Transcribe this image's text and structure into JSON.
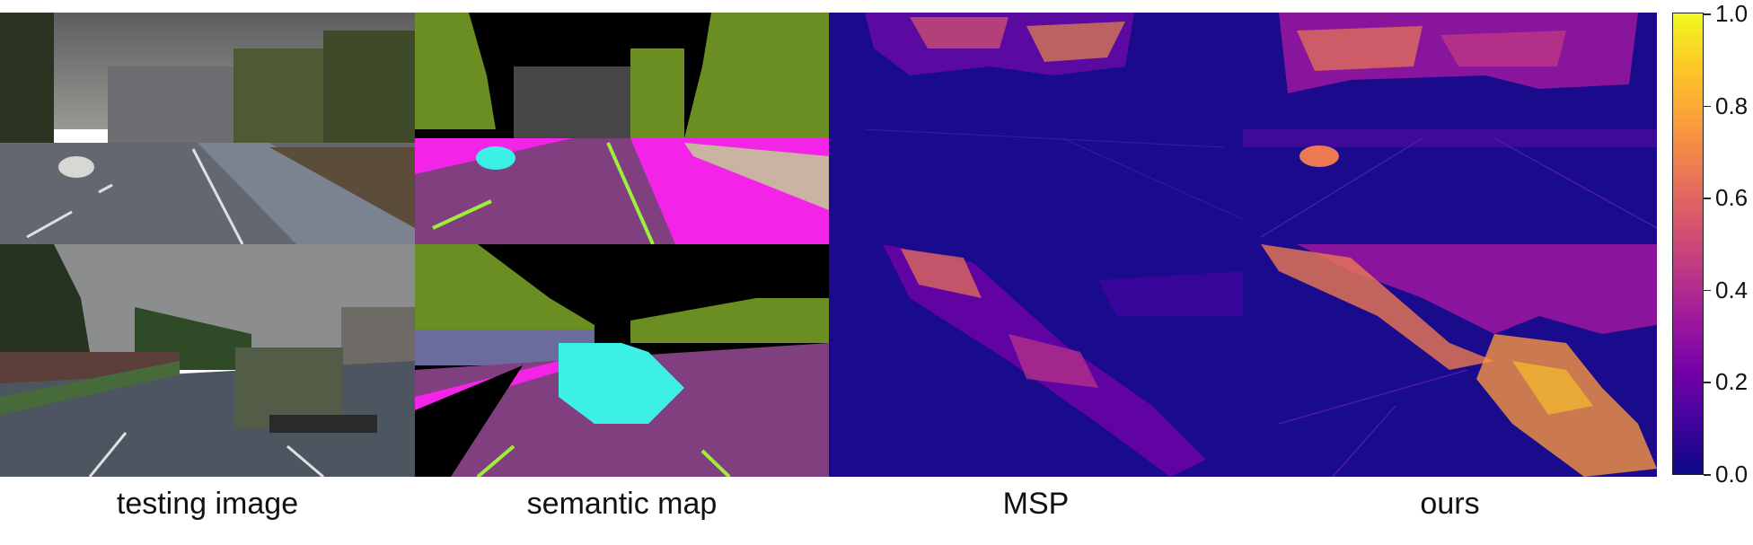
{
  "columns": {
    "testing_image": "testing image",
    "semantic_map": "semantic map",
    "msp": "MSP",
    "ours": "ours"
  },
  "colorbar": {
    "ticks": [
      "1.0",
      "0.8",
      "0.6",
      "0.4",
      "0.2",
      "0.0"
    ],
    "colormap": [
      "#0d0887",
      "#7201a8",
      "#bd3786",
      "#ed7953",
      "#fdca26",
      "#f0f921"
    ]
  },
  "rows": [
    "sheep-scene",
    "truck-scene"
  ],
  "colors": {
    "road": "#80407f",
    "sidewalk": "#f423e8",
    "vegetation": "#6b8e23",
    "building": "#464646",
    "anomaly": "#3cf0e6",
    "lane": "#9bf03c",
    "heat_bg": "#1a0a8c"
  }
}
